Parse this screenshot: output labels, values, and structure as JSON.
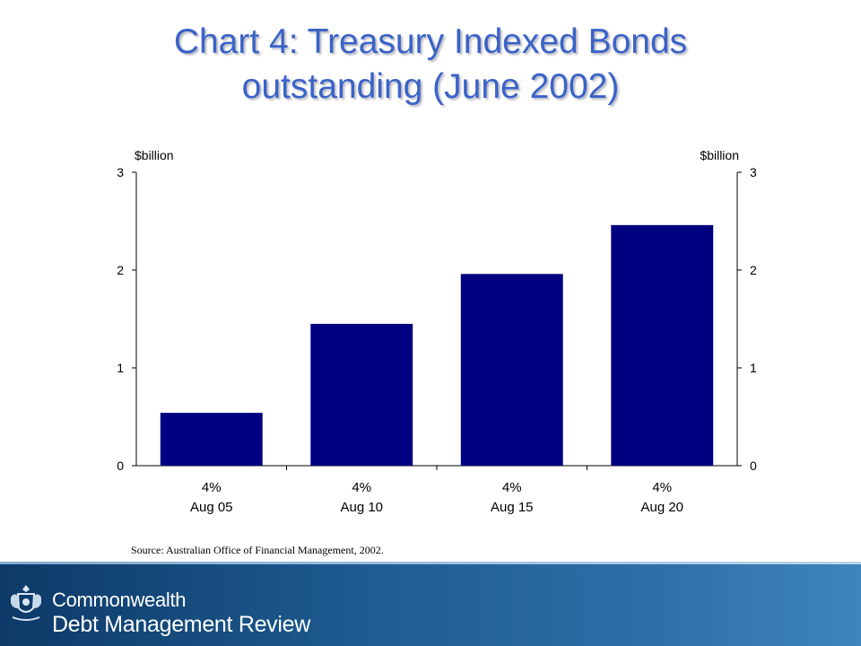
{
  "slide": {
    "title_line1": "Chart 4:  Treasury Indexed Bonds",
    "title_line2": "outstanding (June 2002)",
    "source": "Source:  Australian Office of Financial Management, 2002.",
    "footer": {
      "org": "Commonwealth",
      "program": "Debt Management Review",
      "crest": "commonwealth-crest-icon"
    }
  },
  "colors": {
    "title": "#3a63c8",
    "bar": "#000080",
    "footer": "#1f5d93"
  },
  "chart_data": {
    "type": "bar",
    "categories": [
      [
        "4%",
        "Aug 05"
      ],
      [
        "4%",
        "Aug 10"
      ],
      [
        "4%",
        "Aug 15"
      ],
      [
        "4%",
        "Aug 20"
      ]
    ],
    "values": [
      0.54,
      1.45,
      1.96,
      2.46
    ],
    "ylabel_left": "$billion",
    "ylabel_right": "$billion",
    "ylim": [
      0,
      3
    ],
    "yticks": [
      0,
      1,
      2,
      3
    ],
    "grid": false,
    "legend": "none"
  }
}
